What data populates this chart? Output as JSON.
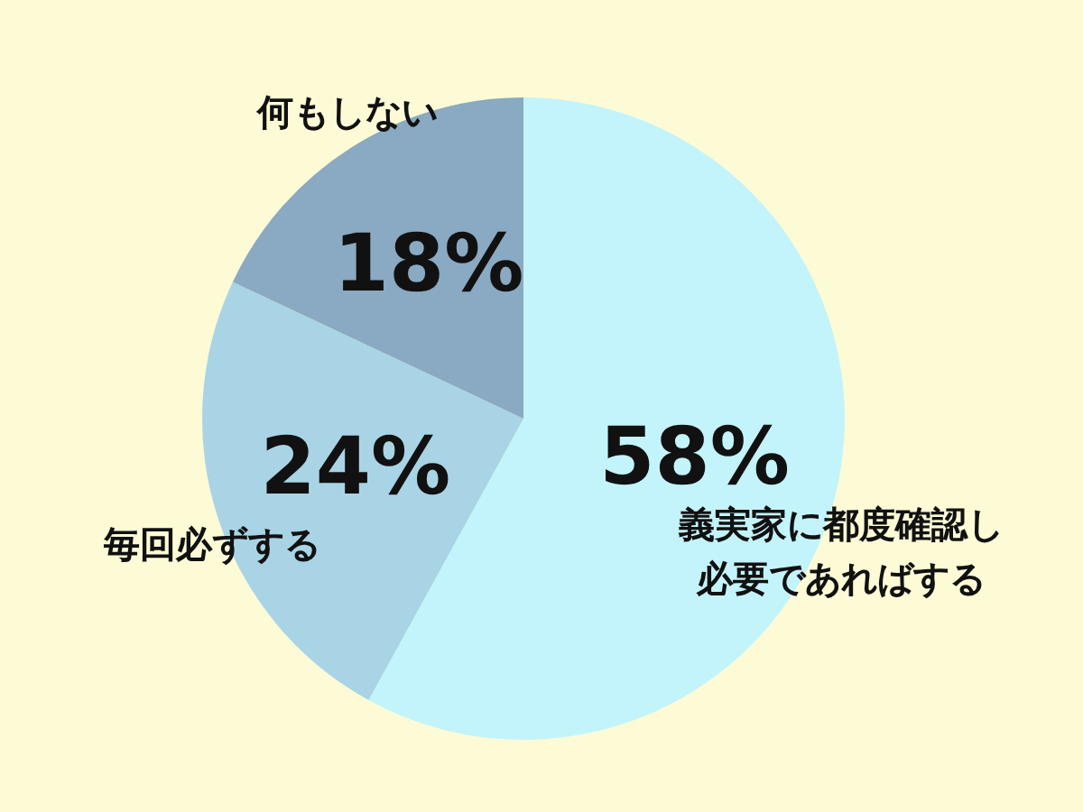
{
  "chart_data": {
    "type": "pie",
    "categories": [
      "義実家に都度確認し必要であればする",
      "毎回必ずする",
      "何もしない"
    ],
    "values": [
      58,
      24,
      18
    ],
    "colors": [
      "#c3f4fb",
      "#a9d4e6",
      "#8aa9c2"
    ],
    "value_labels": [
      "58%",
      "24%",
      "18%"
    ],
    "legend": false
  }
}
